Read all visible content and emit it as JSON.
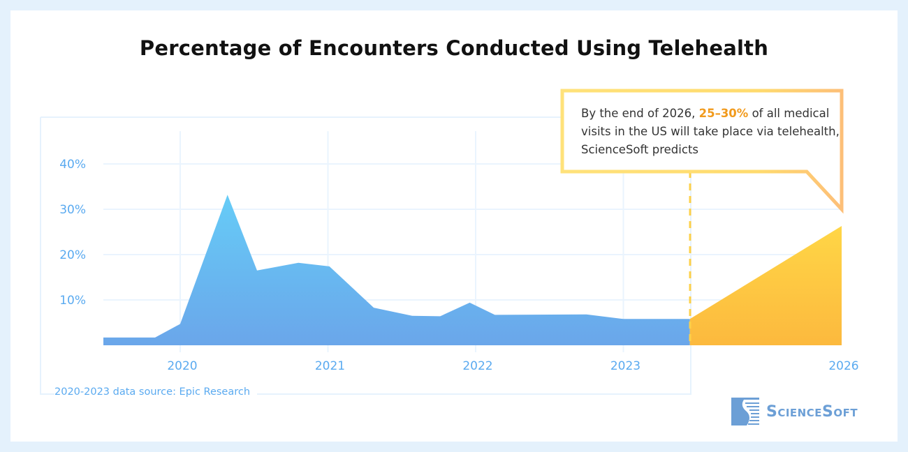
{
  "chart_data": {
    "type": "area",
    "title": "Percentage of Encounters Conducted Using Telehealth",
    "yticks": [
      "40%",
      "30%",
      "20%",
      "10%"
    ],
    "ytick_values": [
      40,
      30,
      20,
      10
    ],
    "xticks": [
      "2020",
      "2021",
      "2022",
      "2023",
      "2026"
    ],
    "xtick_values": [
      2020,
      2021,
      2022,
      2023,
      2026
    ],
    "ylim": [
      0,
      45
    ],
    "grid": true,
    "series": [
      {
        "kind": "historical",
        "color": "#6aa6ea",
        "color_top": "#66ccf7",
        "points": [
          [
            2019.48,
            1.7
          ],
          [
            2019.83,
            1.7
          ],
          [
            2020.0,
            4.7
          ],
          [
            2020.32,
            33.2
          ],
          [
            2020.52,
            16.5
          ],
          [
            2020.8,
            18.2
          ],
          [
            2021.01,
            17.4
          ],
          [
            2021.31,
            8.3
          ],
          [
            2021.57,
            6.5
          ],
          [
            2021.76,
            6.4
          ],
          [
            2021.96,
            9.4
          ],
          [
            2022.13,
            6.7
          ],
          [
            2022.75,
            6.8
          ],
          [
            2023.0,
            5.8
          ],
          [
            2023.45,
            5.8
          ]
        ]
      },
      {
        "kind": "forecast",
        "color": "#fcb93e",
        "color_top": "#ffd646",
        "points": [
          [
            2023.45,
            5.8
          ],
          [
            2026,
            26.3
          ]
        ]
      }
    ],
    "source_note": "2020-2023 data source: Epic Research"
  },
  "callout": {
    "before": "By the end of 2026, ",
    "highlight": "25–30%",
    "after": " of all medical visits in the US will take place via telehealth, ScienceSoft predicts",
    "highlight_color": "#f19a1c",
    "border_color": "#ffdb6e"
  },
  "logo": {
    "text": "ScienceSoft"
  }
}
